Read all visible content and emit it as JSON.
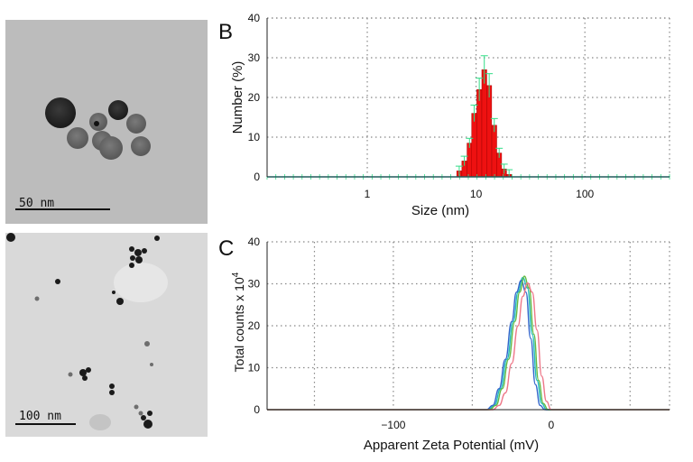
{
  "panels": {
    "top_left": {
      "scale_label": "50 nm"
    },
    "bottom_left": {
      "scale_label": "100 nm"
    },
    "b_letter": "B",
    "c_letter": "C"
  },
  "colors": {
    "bar_fill": "#ee1111",
    "errorbar": "#33dd88",
    "baseline": "#22cccc",
    "grid": "#888888"
  },
  "chart_data": [
    {
      "type": "bar",
      "panel": "B",
      "xlabel": "Size (nm)",
      "ylabel": "Number (%)",
      "x_scale": "log",
      "xlim": [
        0.12,
        600
      ],
      "ylim": [
        0,
        40
      ],
      "x_ticks": [
        1,
        10,
        100
      ],
      "x_tick_labels": [
        "1",
        "10",
        "100"
      ],
      "y_ticks": [
        0,
        10,
        20,
        30,
        40
      ],
      "grid": true,
      "bins": [
        {
          "x": 7.0,
          "value": 1.5
        },
        {
          "x": 7.8,
          "value": 4.0
        },
        {
          "x": 8.7,
          "value": 8.5
        },
        {
          "x": 9.6,
          "value": 16.0
        },
        {
          "x": 10.7,
          "value": 22.0
        },
        {
          "x": 11.9,
          "value": 27.0
        },
        {
          "x": 13.2,
          "value": 23.0
        },
        {
          "x": 14.7,
          "value": 13.0
        },
        {
          "x": 16.3,
          "value": 6.0
        },
        {
          "x": 18.1,
          "value": 2.0
        },
        {
          "x": 20.1,
          "value": 0.6
        }
      ]
    },
    {
      "type": "line",
      "panel": "C",
      "xlabel": "Apparent Zeta Potential (mV)",
      "ylabel": "Total counts x 10",
      "ylabel_sup": "4",
      "xlim": [
        -180,
        75
      ],
      "ylim": [
        0,
        40
      ],
      "x_ticks": [
        -100,
        0
      ],
      "x_tick_labels": [
        "−100",
        "0"
      ],
      "y_ticks": [
        0,
        10,
        20,
        30,
        40
      ],
      "grid": true,
      "series": [
        {
          "color": "#22bbbb",
          "x": [
            -180,
            -40,
            -36,
            -32,
            -28,
            -24,
            -21,
            -18,
            -15,
            -12,
            -9,
            -6,
            -3,
            75
          ],
          "y": [
            0,
            0,
            1,
            5,
            12,
            21,
            28,
            31.5,
            29,
            18,
            7,
            1.5,
            0,
            0
          ]
        },
        {
          "color": "#3366cc",
          "x": [
            -180,
            -41,
            -37,
            -33,
            -29,
            -25,
            -22,
            -19,
            -16,
            -13,
            -10,
            -7,
            -4,
            75
          ],
          "y": [
            0,
            0,
            1,
            5,
            12,
            21,
            28,
            30.8,
            28,
            17,
            6,
            1,
            0,
            0
          ]
        },
        {
          "color": "#66bb44",
          "x": [
            -180,
            -39,
            -35,
            -31,
            -27,
            -23,
            -20,
            -17,
            -14,
            -11,
            -8,
            -5,
            -2,
            75
          ],
          "y": [
            0,
            0,
            1,
            5,
            12,
            21,
            28,
            31.8,
            29,
            18,
            7,
            1.5,
            0,
            0
          ]
        },
        {
          "color": "#ee7788",
          "x": [
            -180,
            -37,
            -33,
            -29,
            -25,
            -21,
            -18,
            -15,
            -12,
            -9,
            -6,
            -3,
            0,
            75
          ],
          "y": [
            0,
            0,
            1,
            4,
            11,
            20,
            27,
            30.2,
            28,
            19,
            8,
            2,
            0,
            0
          ]
        }
      ]
    }
  ]
}
